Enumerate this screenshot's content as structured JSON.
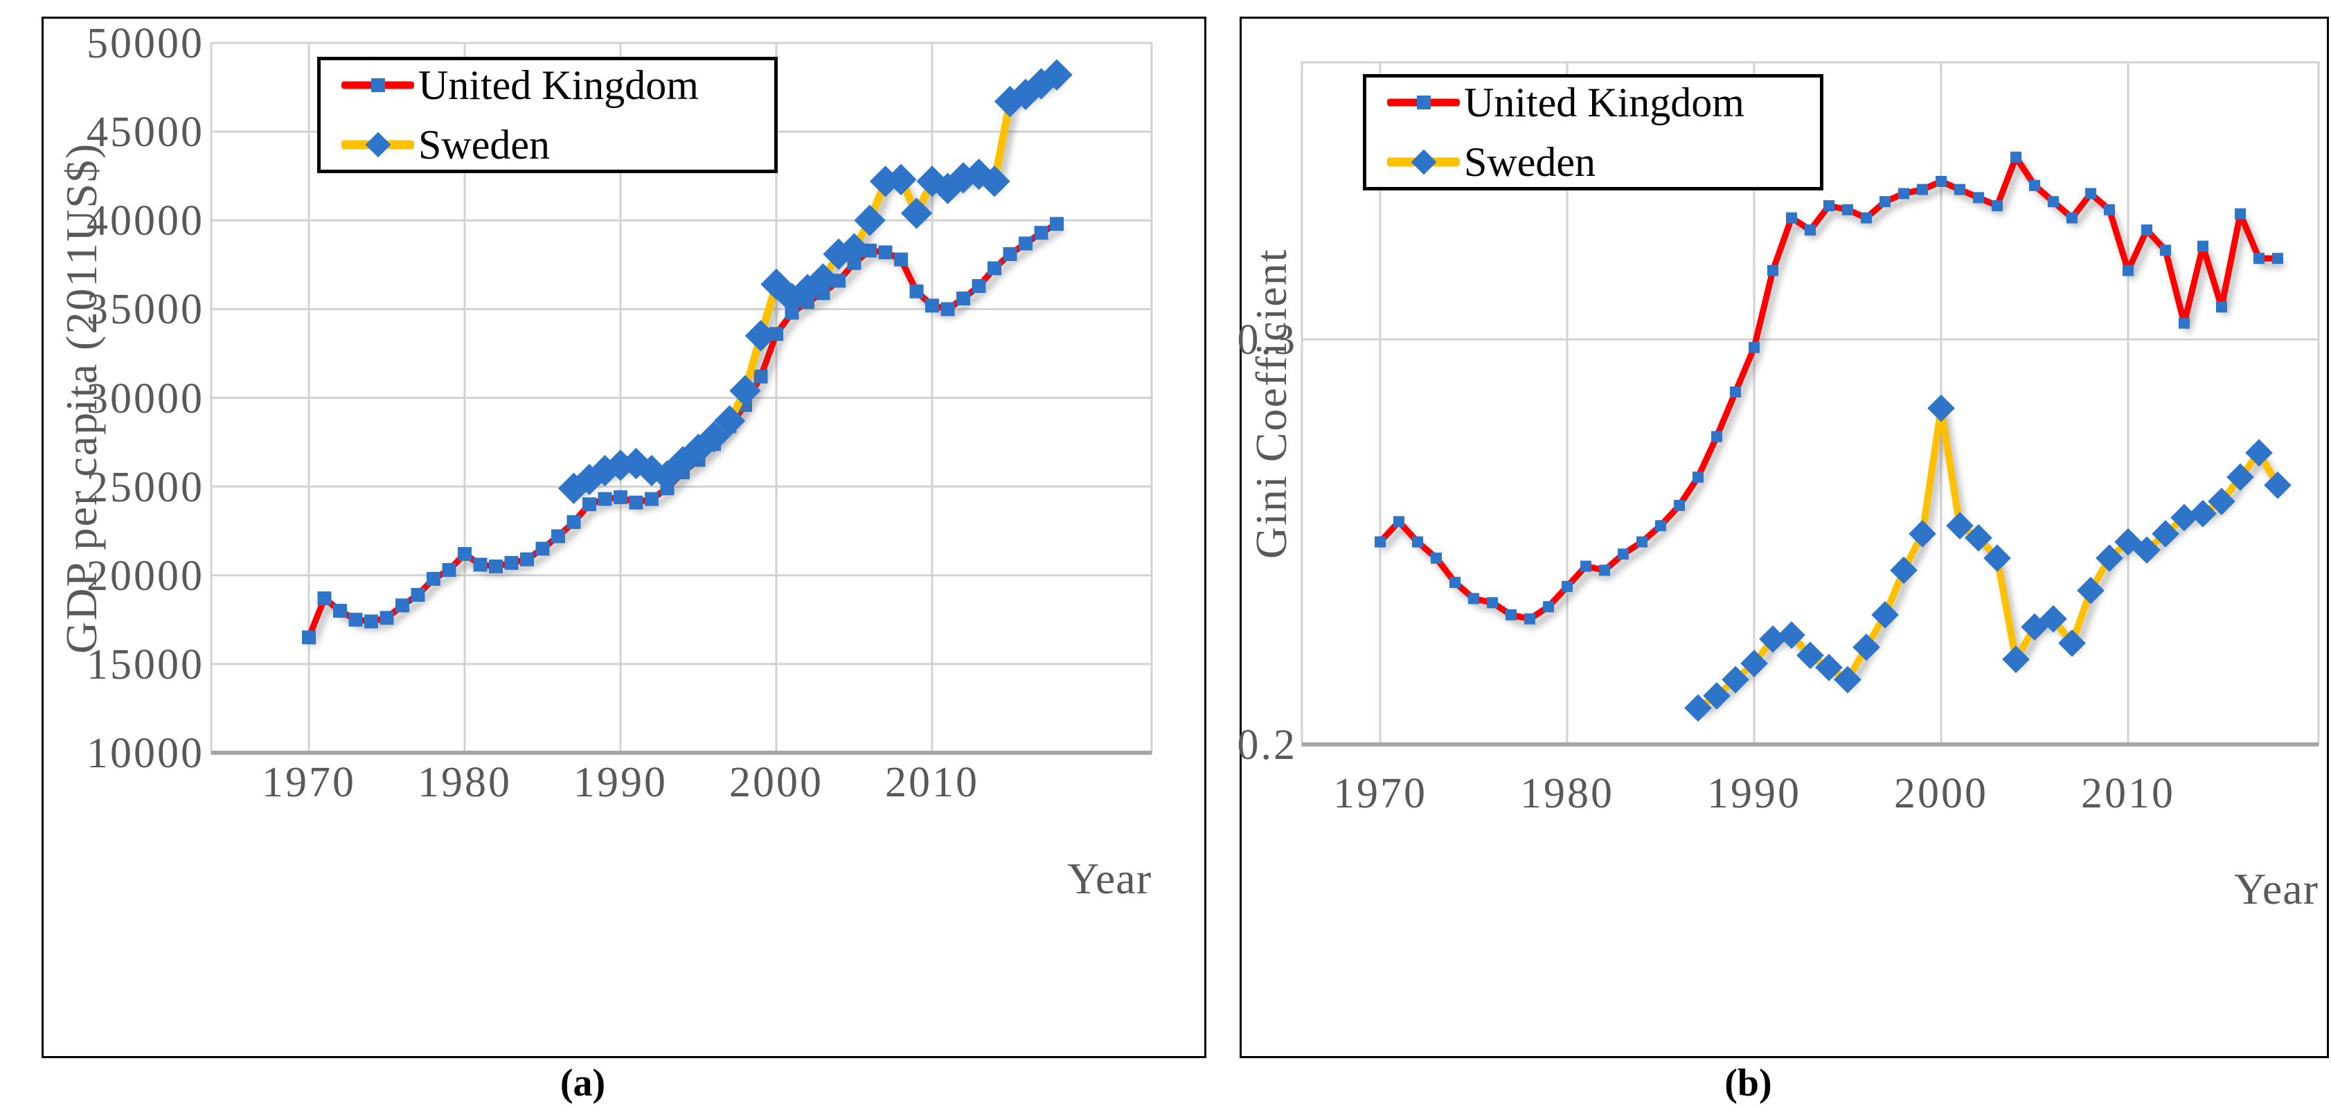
{
  "figure": {
    "caption_a": "(a)",
    "caption_b": "(b)"
  },
  "panel_a": {
    "y_axis_title": "GDP per capita (2011US$)",
    "x_axis_title": "Year",
    "y_tick_labels": [
      "50000",
      "45000",
      "40000",
      "35000",
      "30000",
      "25000",
      "20000",
      "15000",
      "10000"
    ],
    "x_tick_labels": [
      "1970",
      "1980",
      "1990",
      "2000",
      "2010"
    ],
    "legend_labels": [
      "United Kingdom",
      "Sweden"
    ]
  },
  "panel_b": {
    "y_axis_title": "Gini Coefficient",
    "x_axis_title": "Year",
    "y_tick_labels": [
      "0.3",
      "0.2"
    ],
    "x_tick_labels": [
      "1970",
      "1980",
      "1990",
      "2000",
      "2010"
    ],
    "legend_labels": [
      "United Kingdom",
      "Sweden"
    ]
  },
  "colors": {
    "uk_line": "#FF0000",
    "sweden_line": "#FFC000",
    "marker_blue": "#2E74C9",
    "gridline": "#D2D2D2",
    "axis_line": "#A6A6A6",
    "tick_text": "#595959",
    "legend_border": "#000000"
  },
  "chart_data": [
    {
      "id": "gdp",
      "type": "line",
      "title": "",
      "xlabel": "Year",
      "ylabel": "GDP per capita (2011US$)",
      "ylim": [
        10000,
        50000
      ],
      "y_gridline_step": 5000,
      "x_ticks": [
        1970,
        1980,
        1990,
        2000,
        2010
      ],
      "y_ticks": [
        50000,
        45000,
        40000,
        35000,
        30000,
        25000,
        20000,
        15000,
        10000
      ],
      "legend_position": "top-left-inside",
      "grid": true,
      "series": [
        {
          "name": "United Kingdom",
          "color": "#FF0000",
          "marker": "square",
          "marker_color": "#2E74C9",
          "x_start": 1970,
          "x_step": 1,
          "values": [
            16500,
            18700,
            18000,
            17500,
            17400,
            17600,
            18300,
            18900,
            19800,
            20300,
            21200,
            20600,
            20500,
            20700,
            20900,
            21500,
            22200,
            23000,
            24000,
            24300,
            24400,
            24100,
            24300,
            24900,
            25800,
            26500,
            27400,
            28400,
            29600,
            31200,
            33600,
            34800,
            35400,
            35900,
            36600,
            37600,
            38300,
            38200,
            37800,
            36000,
            35200,
            35000,
            35600,
            36300,
            37300,
            38100,
            38700,
            39300,
            39800
          ]
        },
        {
          "name": "Sweden",
          "color": "#FFC000",
          "marker": "diamond",
          "marker_color": "#2E74C9",
          "x_start": 1987,
          "x_step": 1,
          "values": [
            24900,
            25400,
            25900,
            26200,
            26300,
            25900,
            25600,
            26400,
            27100,
            27800,
            28700,
            30400,
            33500,
            36400,
            35600,
            36100,
            36700,
            38100,
            38400,
            40000,
            42200,
            42300,
            40400,
            42200,
            41800,
            42400,
            42600,
            42200,
            46700,
            47100,
            47700,
            48200
          ]
        }
      ]
    },
    {
      "id": "gini",
      "type": "line",
      "title": "",
      "xlabel": "Year",
      "ylabel": "Gini Coefficient",
      "ylim": [
        0.2,
        0.3684
      ],
      "x_ticks": [
        1970,
        1980,
        1990,
        2000,
        2010
      ],
      "y_ticks": [
        0.3,
        0.2
      ],
      "legend_position": "top-left-inside",
      "grid": true,
      "series": [
        {
          "name": "United Kingdom",
          "color": "#FF0000",
          "marker": "square",
          "marker_color": "#2E74C9",
          "x_start": 1970,
          "x_step": 1,
          "values": [
            0.25,
            0.255,
            0.25,
            0.246,
            0.24,
            0.236,
            0.235,
            0.232,
            0.231,
            0.234,
            0.239,
            0.244,
            0.243,
            0.247,
            0.25,
            0.254,
            0.259,
            0.266,
            0.276,
            0.287,
            0.298,
            0.317,
            0.33,
            0.327,
            0.333,
            0.332,
            0.33,
            0.334,
            0.336,
            0.337,
            0.339,
            0.337,
            0.335,
            0.333,
            0.345,
            0.338,
            0.334,
            0.33,
            0.336,
            0.332,
            0.317,
            0.327,
            0.322,
            0.304,
            0.323,
            0.308,
            0.331,
            0.32,
            0.32
          ]
        },
        {
          "name": "Sweden",
          "color": "#FFC000",
          "marker": "diamond",
          "marker_color": "#2E74C9",
          "x_start": 1987,
          "x_step": 1,
          "values": [
            0.209,
            0.212,
            0.216,
            0.22,
            0.226,
            0.227,
            0.222,
            0.219,
            0.216,
            0.224,
            0.232,
            0.243,
            0.252,
            0.283,
            0.254,
            0.251,
            0.246,
            0.221,
            0.229,
            0.231,
            0.225,
            0.238,
            0.246,
            0.25,
            0.248,
            0.252,
            0.256,
            0.257,
            0.26,
            0.266,
            0.272,
            0.264
          ]
        }
      ]
    }
  ]
}
